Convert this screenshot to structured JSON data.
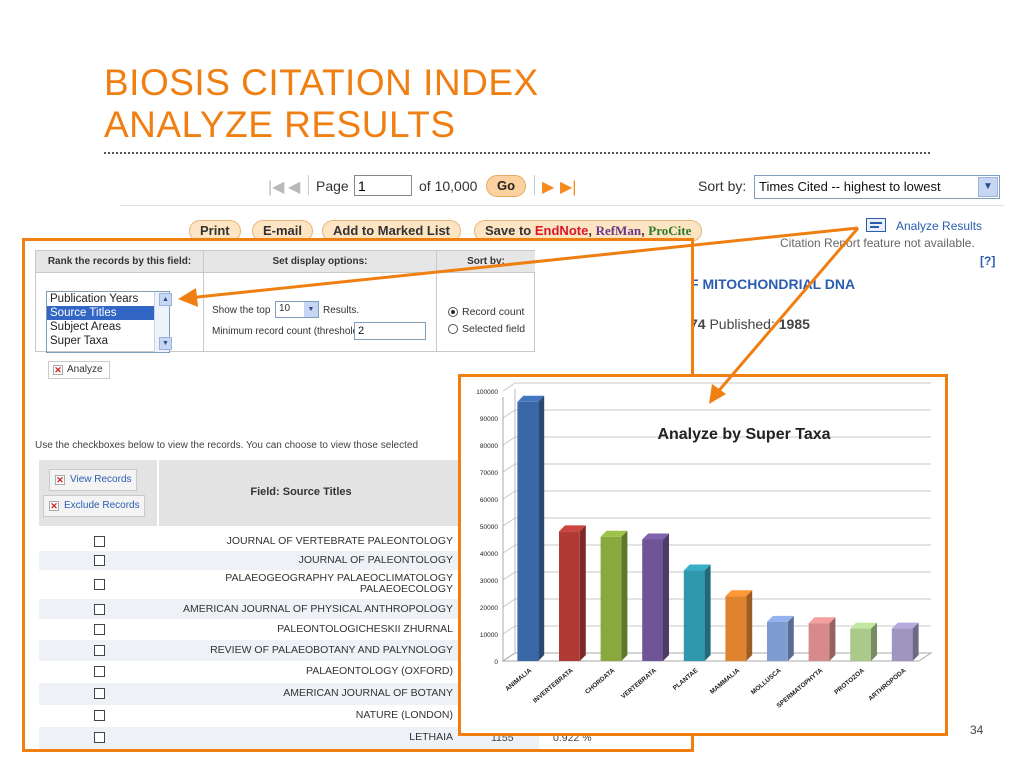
{
  "slide": {
    "title_line1": "BIOSIS CITATION INDEX",
    "title_line2": "ANALYZE RESULTS",
    "page_number": "34"
  },
  "pager": {
    "page_label": "Page",
    "page_value": "1",
    "of_label": "of 10,000",
    "go_label": "Go",
    "sort_label": "Sort by:",
    "sort_value": "Times Cited -- highest to lowest"
  },
  "toolbar": {
    "print_label": "Print",
    "email_label": "E-mail",
    "marked_list_label": "Add to Marked List",
    "save_label": "Save to",
    "save_endnote": "EndNote",
    "save_refman": "RefMan",
    "save_procite": "ProCite",
    "analyze_results_label": "Analyze Results",
    "citation_note": "Citation Report feature not available.",
    "help_label": "[?]"
  },
  "record": {
    "title_fragment": "F MITOCHONDRIAL DNA",
    "meta_fragment_num": "74",
    "meta_fragment_label": "Published:",
    "meta_fragment_year": "1985"
  },
  "options": {
    "rank_header": "Rank the records by this field:",
    "display_header": "Set display options:",
    "sortby_header": "Sort by:",
    "fields": [
      "Publication Years",
      "Source Titles",
      "Subject Areas",
      "Super Taxa"
    ],
    "selected_field": "Source Titles",
    "show_top_label": "Show the top",
    "show_top_value": "10",
    "results_label": "Results.",
    "min_count_label": "Minimum record count (threshold):",
    "min_count_value": "2",
    "sort_record_count": "Record count",
    "sort_selected_field": "Selected field",
    "analyze_label": "Analyze"
  },
  "records": {
    "instructions": "Use the checkboxes below to view the records. You can choose to view those selected",
    "view_records_label": "View Records",
    "exclude_records_label": "Exclude Records",
    "field_header": "Field: Source Titles",
    "rows": [
      {
        "source": "JOURNAL OF VERTEBRATE PALEONTOLOGY"
      },
      {
        "source": "JOURNAL OF PALEONTOLOGY"
      },
      {
        "source_line1": "PALAEOGEOGRAPHY PALAEOCLIMATOLOGY",
        "source_line2": "PALAEOECOLOGY"
      },
      {
        "source": "AMERICAN JOURNAL OF PHYSICAL ANTHROPOLOGY"
      },
      {
        "source": "PALEONTOLOGICHESKII ZHURNAL"
      },
      {
        "source": "REVIEW OF PALAEOBOTANY AND PALYNOLOGY"
      },
      {
        "source": "PALAEONTOLOGY (OXFORD)"
      },
      {
        "source": "AMERICAN JOURNAL OF BOTANY"
      },
      {
        "source": "NATURE (LONDON)"
      },
      {
        "source": "LETHAIA",
        "count": "1155",
        "percent": "0.922 %"
      }
    ]
  },
  "chart_data": {
    "type": "bar",
    "title": "Analyze by Super Taxa",
    "categories": [
      "ANIMALIA",
      "INVERTEBRATA",
      "CHORDATA",
      "VERTEBRATA",
      "PLANTAE",
      "MAMMALIA",
      "MOLLUSCA",
      "SPERMATOPHYTA",
      "PROTOZOA",
      "ARTHROPODA"
    ],
    "values": [
      96000,
      48000,
      46000,
      45000,
      33500,
      24000,
      14500,
      14000,
      12000,
      12000
    ],
    "colors": [
      "#3a67a6",
      "#b23a36",
      "#89a83e",
      "#6f5596",
      "#2f98ad",
      "#e0832f",
      "#7f9cd0",
      "#d68a8a",
      "#aac98a",
      "#9f95c0"
    ],
    "ylim": [
      0,
      100000
    ],
    "yticks": [
      0,
      10000,
      20000,
      30000,
      40000,
      50000,
      60000,
      70000,
      80000,
      90000,
      100000
    ],
    "grid": true,
    "legend": "none"
  }
}
